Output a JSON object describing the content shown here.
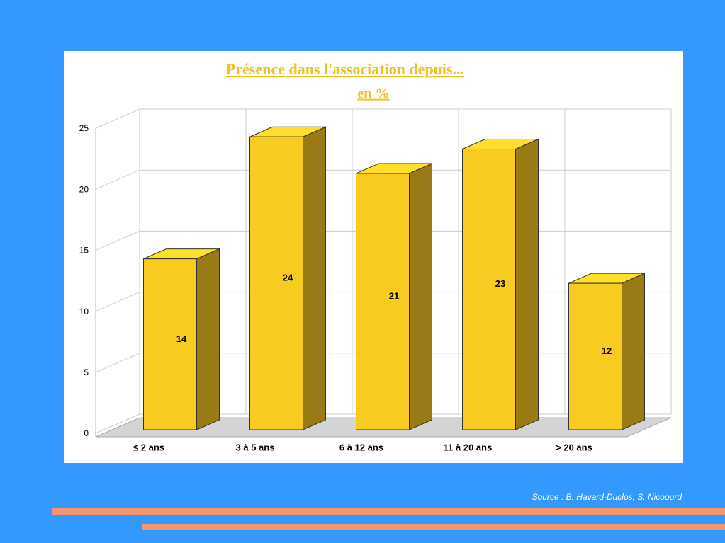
{
  "chart_data": {
    "type": "bar3d",
    "title": "Présence dans l'association depuis...",
    "subtitle": "en %",
    "categories": [
      "≤ 2 ans",
      "3 à 5 ans",
      "6 à 12 ans",
      "11 à 20 ans",
      "> 20 ans"
    ],
    "values": [
      14,
      24,
      21,
      23,
      12
    ],
    "color": "#f7cb1f",
    "ylim": [
      0,
      25
    ],
    "yticks": [
      0,
      5,
      10,
      15,
      20,
      25
    ],
    "grid": true
  },
  "source": "Source : B. Havard-Duclos, S. Nicoourd"
}
